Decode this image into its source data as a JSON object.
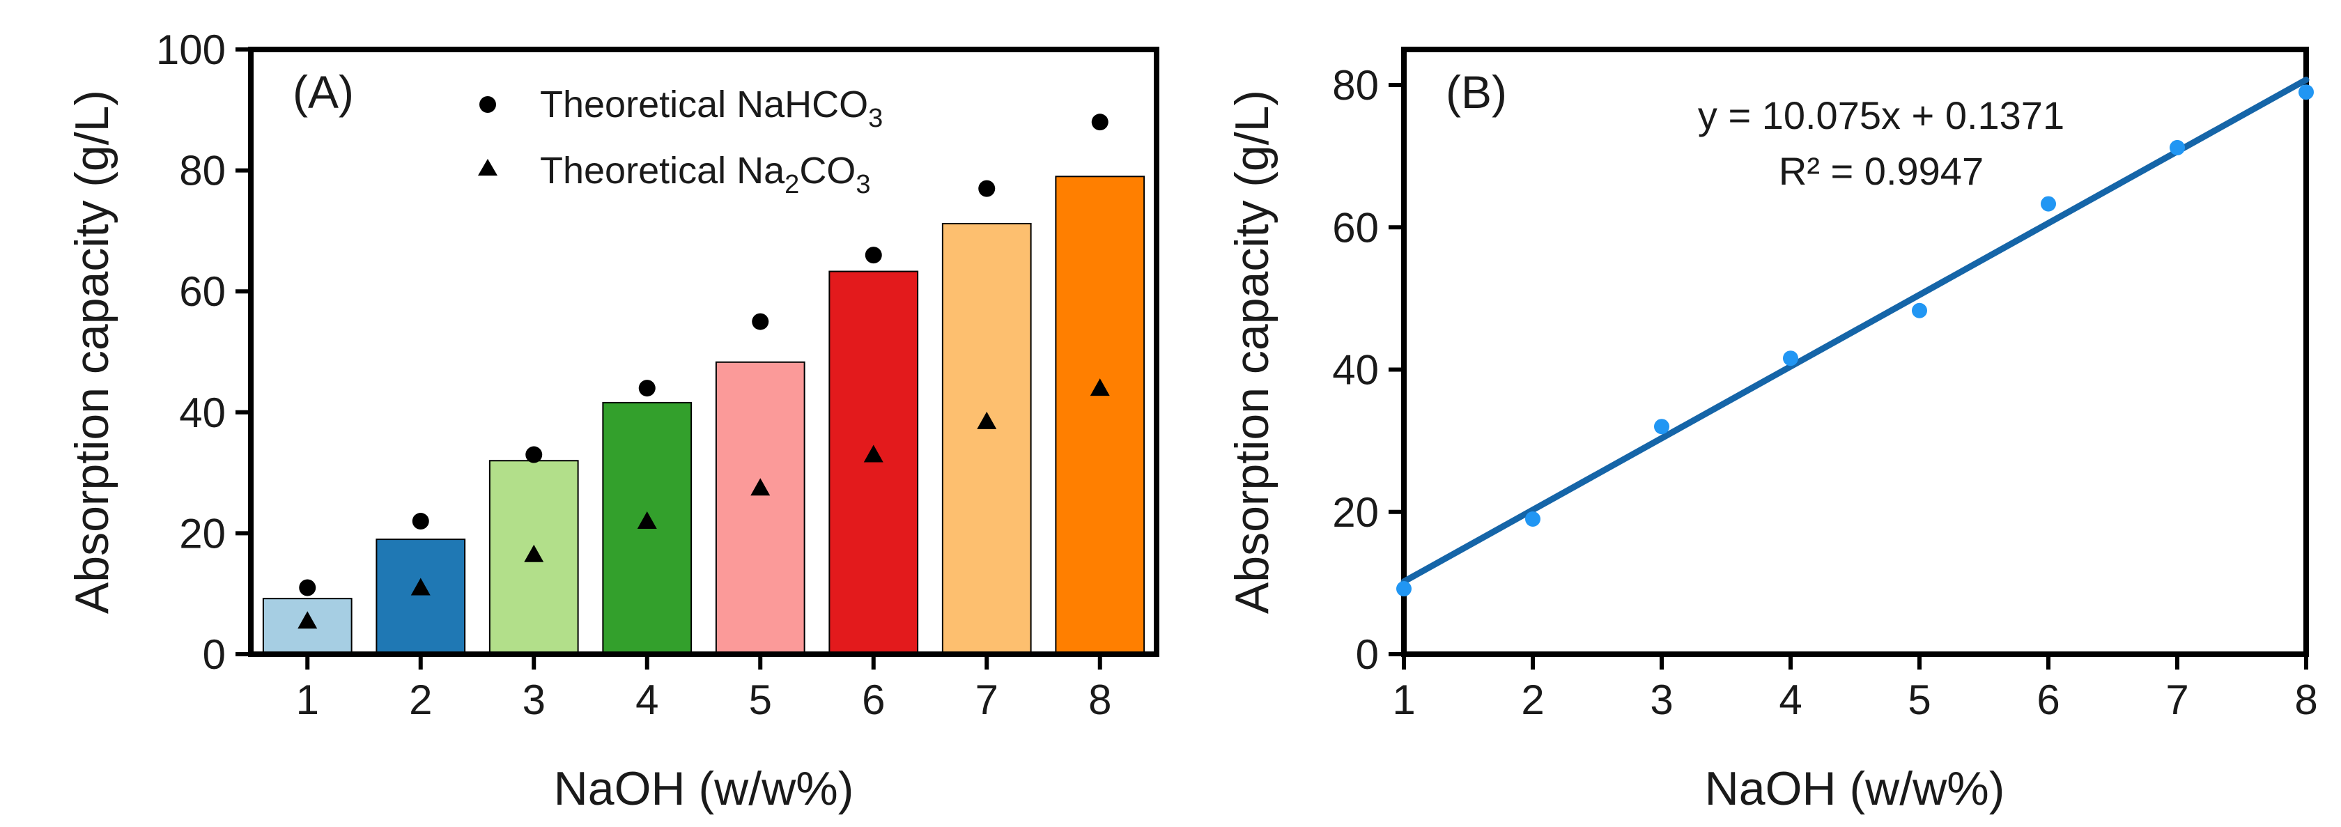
{
  "chart_data": [
    {
      "panel_label": "(A)",
      "type": "bar",
      "xlabel": "NaOH (w/w%)",
      "ylabel": "Absorption capacity (g/L)",
      "ylim": [
        0,
        100
      ],
      "yticks": [
        "0",
        "20",
        "40",
        "60",
        "80",
        "100"
      ],
      "categories": [
        "1",
        "2",
        "3",
        "4",
        "5",
        "6",
        "7",
        "8"
      ],
      "values": [
        9.2,
        19.0,
        32.0,
        41.6,
        48.3,
        63.3,
        71.2,
        79.0
      ],
      "bar_colors": [
        "#a6cee3",
        "#1f78b4",
        "#b2df8a",
        "#33a02c",
        "#fb9a99",
        "#e31a1c",
        "#fdbf6f",
        "#ff7f00"
      ],
      "series": [
        {
          "name": "Theoretical NaHCO3",
          "name_main": "Theoretical NaHCO",
          "name_sub": "3",
          "name_tail": "",
          "marker": "circle",
          "values": [
            11,
            22,
            33,
            44,
            55,
            66,
            77,
            88
          ]
        },
        {
          "name": "Theoretical Na2CO3",
          "name_main": "Theoretical Na",
          "name_sub": "2",
          "name_tail": "CO",
          "name_sub2": "3",
          "marker": "triangle",
          "values": [
            5.5,
            11,
            16.5,
            22,
            27.5,
            33,
            38.5,
            44
          ]
        }
      ],
      "legend_position": "top-center"
    },
    {
      "panel_label": "(B)",
      "type": "scatter",
      "xlabel": "NaOH (w/w%)",
      "ylabel": "Absorption capacity (g/L)",
      "xlim": [
        1,
        8
      ],
      "ylim": [
        0,
        85
      ],
      "xticks": [
        "1",
        "2",
        "3",
        "4",
        "5",
        "6",
        "7",
        "8"
      ],
      "yticks": [
        "0",
        "20",
        "40",
        "60",
        "80"
      ],
      "x": [
        1,
        2,
        3,
        4,
        5,
        6,
        7,
        8
      ],
      "y": [
        9.2,
        19.0,
        32.0,
        41.6,
        48.3,
        63.3,
        71.2,
        79.0
      ],
      "point_color": "#2196f3",
      "fit": {
        "slope": 10.075,
        "intercept": 0.1371,
        "r2": 0.9947,
        "color": "#1565a8"
      },
      "equation_text": "y = 10.075x + 0.1371",
      "r2_text": "R² = 0.9947"
    }
  ]
}
